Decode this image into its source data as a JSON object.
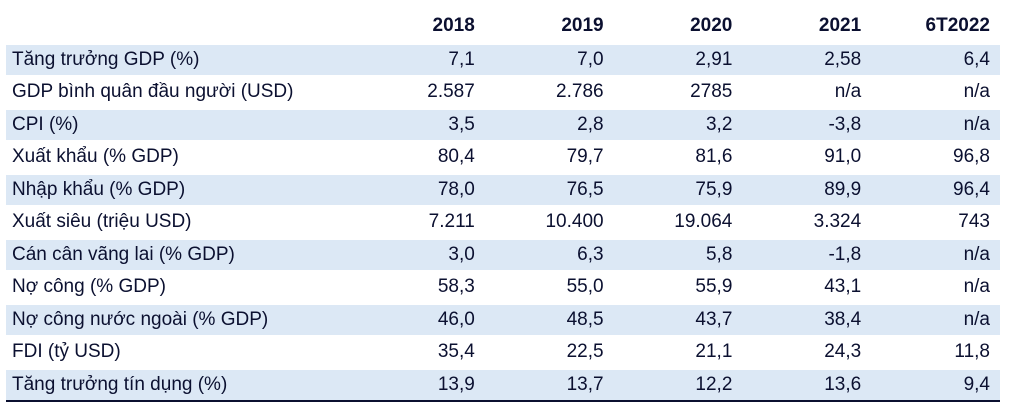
{
  "table": {
    "headers": [
      "",
      "2018",
      "2019",
      "2020",
      "2021",
      "6T2022"
    ],
    "rows": [
      {
        "label": "Tăng trưởng GDP (%)",
        "values": [
          "7,1",
          "7,0",
          "2,91",
          "2,58",
          "6,4"
        ]
      },
      {
        "label": "GDP bình quân đầu người (USD)",
        "values": [
          "2.587",
          "2.786",
          "2785",
          "n/a",
          "n/a"
        ]
      },
      {
        "label": "CPI (%)",
        "values": [
          "3,5",
          "2,8",
          "3,2",
          "-3,8",
          "n/a"
        ]
      },
      {
        "label": "Xuất khẩu (% GDP)",
        "values": [
          "80,4",
          "79,7",
          "81,6",
          "91,0",
          "96,8"
        ]
      },
      {
        "label": "Nhập khẩu  (% GDP)",
        "values": [
          "78,0",
          "76,5",
          "75,9",
          "89,9",
          "96,4"
        ]
      },
      {
        "label": "Xuất siêu (triệu USD)",
        "values": [
          "7.211",
          "10.400",
          "19.064",
          "3.324",
          "743"
        ]
      },
      {
        "label": "Cán cân vãng lai (% GDP)",
        "values": [
          "3,0",
          "6,3",
          "5,8",
          "-1,8",
          "n/a"
        ]
      },
      {
        "label": "Nợ công (% GDP)",
        "values": [
          "58,3",
          "55,0",
          "55,9",
          "43,1",
          "n/a"
        ]
      },
      {
        "label": "Nợ công nước ngoài (% GDP)",
        "values": [
          "46,0",
          "48,5",
          "43,7",
          "38,4",
          "n/a"
        ]
      },
      {
        "label": "FDI (tỷ USD)",
        "values": [
          "35,4",
          "22,5",
          "21,1",
          "24,3",
          "11,8"
        ]
      },
      {
        "label": "Tăng trưởng tín dụng (%)",
        "values": [
          "13,9",
          "13,7",
          "12,2",
          "13,6",
          "9,4"
        ]
      }
    ]
  },
  "colors": {
    "row_shade": "#dce8f5",
    "text": "#0b1030",
    "rule": "#0b1030"
  }
}
